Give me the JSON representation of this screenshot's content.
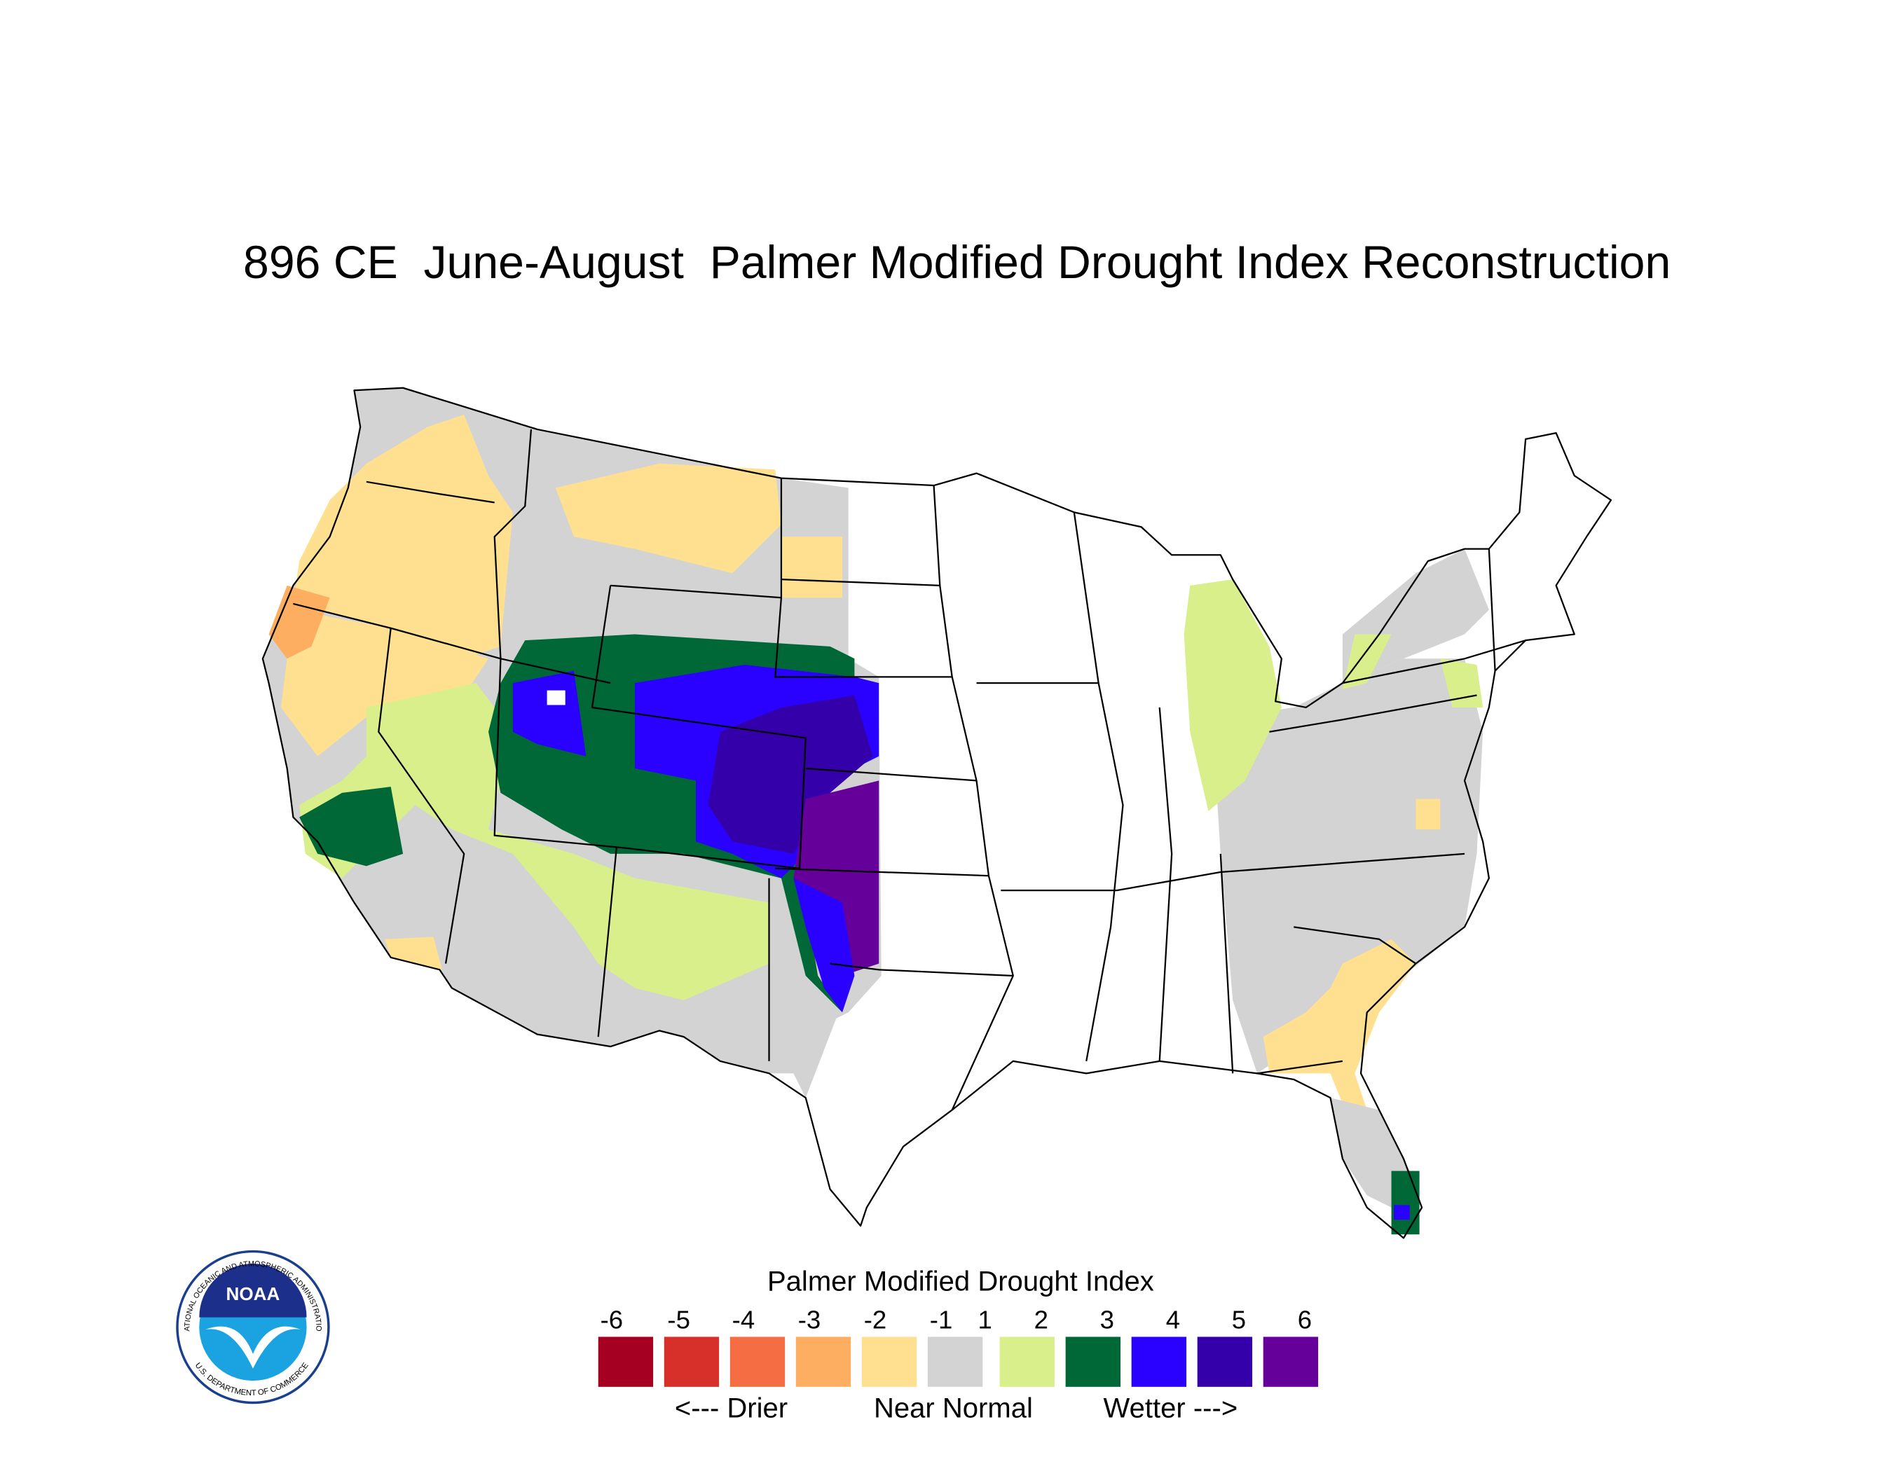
{
  "title": "896 CE  June-August  Palmer Modified Drought Index Reconstruction",
  "legend": {
    "title": "Palmer Modified Drought Index",
    "ticks": [
      -6,
      -5,
      -4,
      -3,
      -2,
      -1,
      1,
      2,
      3,
      4,
      5,
      6
    ],
    "colors": [
      "#a50021",
      "#d7302a",
      "#f46d43",
      "#fdae61",
      "#fee090",
      "#d3d3d3",
      "#d9ef8b",
      "#006837",
      "#2a00ff",
      "#3300aa",
      "#66009b"
    ],
    "labels": [
      "<--- Drier",
      "Near Normal",
      "Wetter --->"
    ]
  },
  "logo": {
    "name": "NOAA",
    "ring_top": "NATIONAL OCEANIC AND ATMOSPHERIC ADMINISTRATION",
    "ring_bottom": "U.S. DEPARTMENT OF COMMERCE"
  }
}
